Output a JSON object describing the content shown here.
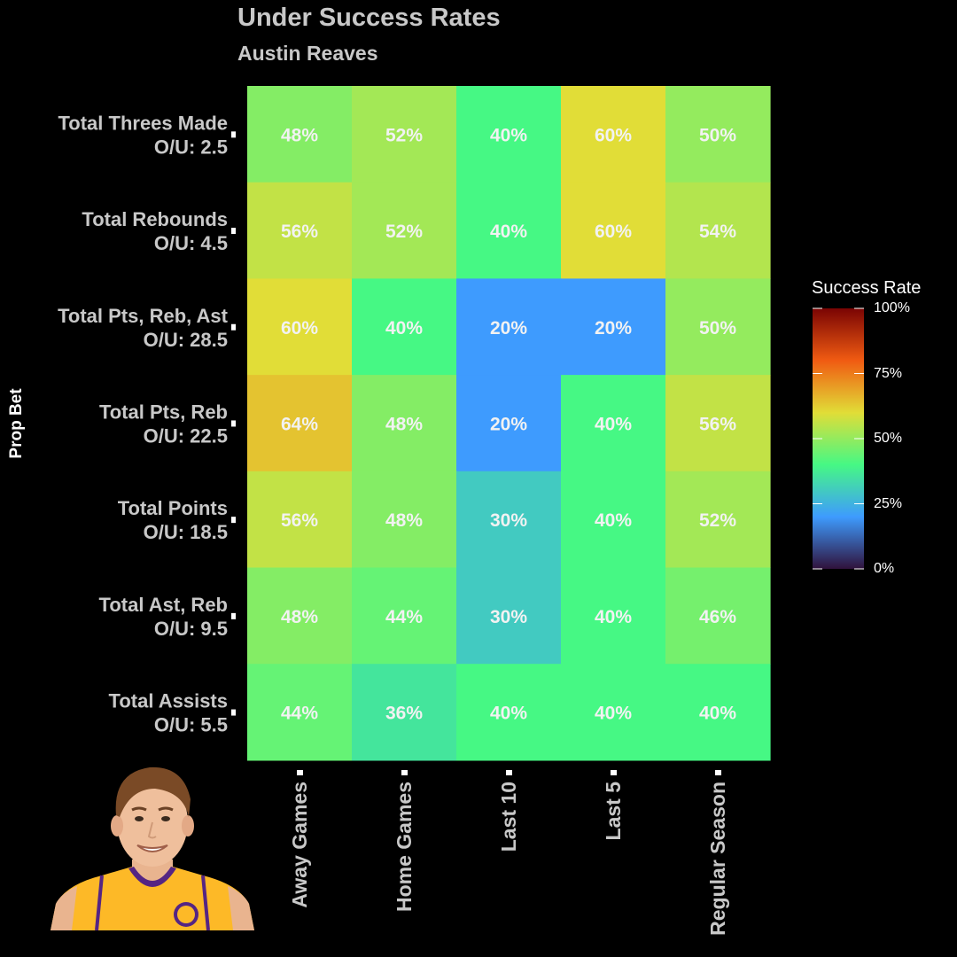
{
  "chart_data": {
    "type": "heatmap",
    "title": "Under Success Rates",
    "subtitle": "Austin Reaves",
    "ylabel": "Prop Bet",
    "xlabel": "",
    "rows": [
      {
        "label": "Total Threes Made",
        "line": "O/U: 2.5"
      },
      {
        "label": "Total Rebounds",
        "line": "O/U: 4.5"
      },
      {
        "label": "Total Pts, Reb, Ast",
        "line": "O/U: 28.5"
      },
      {
        "label": "Total Pts, Reb",
        "line": "O/U: 22.5"
      },
      {
        "label": "Total Points",
        "line": "O/U: 18.5"
      },
      {
        "label": "Total Ast, Reb",
        "line": "O/U: 9.5"
      },
      {
        "label": "Total Assists",
        "line": "O/U: 5.5"
      }
    ],
    "columns": [
      "Away Games",
      "Home Games",
      "Last 10",
      "Last 5",
      "Regular Season"
    ],
    "values": [
      [
        48,
        52,
        40,
        60,
        50
      ],
      [
        56,
        52,
        40,
        60,
        54
      ],
      [
        60,
        40,
        20,
        20,
        50
      ],
      [
        64,
        48,
        20,
        40,
        56
      ],
      [
        56,
        48,
        30,
        40,
        52
      ],
      [
        48,
        44,
        30,
        40,
        46
      ],
      [
        44,
        36,
        40,
        40,
        40
      ]
    ],
    "value_suffix": "%",
    "legend": {
      "title": "Success Rate",
      "position": "right",
      "range": [
        0,
        100
      ],
      "ticks": [
        "100%",
        "75%",
        "50%",
        "25%",
        "0%"
      ],
      "tick_values": [
        100,
        75,
        50,
        25,
        0
      ],
      "colors": [
        "#30123b",
        "#3e9bfe",
        "#46f884",
        "#e1dd37",
        "#f05b12",
        "#7a0403"
      ]
    },
    "grid": false
  },
  "colors": {
    "background": "#000000",
    "title_text": "#c8c8c8",
    "cell_text": "#f2f2f2",
    "jersey_gold": "#fdb927",
    "jersey_purple": "#552583"
  },
  "image": {
    "description_icon": "player-headshot"
  }
}
